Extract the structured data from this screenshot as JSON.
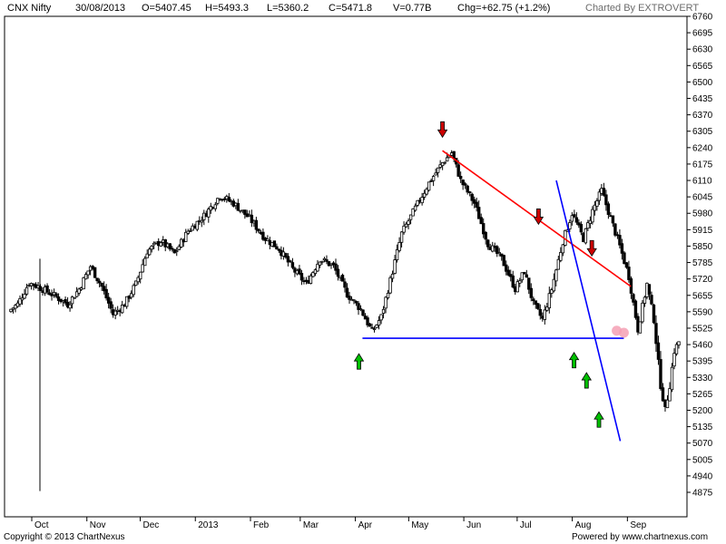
{
  "header": {
    "symbol": "CNX Nifty",
    "date": "30/08/2013",
    "open": "O=5407.45",
    "high": "H=5493.3",
    "low": "L=5360.2",
    "close": "C=5471.8",
    "volume": "V=0.77B",
    "change": "Chg=+62.75 (+1.2%)",
    "charted_by": "Charted By EXTROVERT"
  },
  "footer": {
    "copyright": "Copyright © 2013 ChartNexus",
    "powered_by": "Powered by www.chartnexus.com"
  },
  "colors": {
    "up_candle": "#ffffff",
    "down_candle": "#000000",
    "resistance_line": "#ff0000",
    "support_line": "#0000ff",
    "down_arrow": "#cc0000",
    "up_arrow": "#00c000",
    "marker_circle": "#f4a0b4"
  },
  "chart_data": {
    "type": "candlestick",
    "title": "CNX Nifty",
    "ylim": [
      4810,
      6760
    ],
    "y_ticks": [
      6760,
      6695,
      6630,
      6565,
      6500,
      6435,
      6370,
      6305,
      6240,
      6175,
      6110,
      6045,
      5980,
      5915,
      5850,
      5785,
      5720,
      5655,
      5590,
      5525,
      5460,
      5395,
      5330,
      5265,
      5200,
      5135,
      5070,
      5005,
      4940,
      4875
    ],
    "x_ticks": [
      "Oct",
      "Nov",
      "Dec",
      "2013",
      "Feb",
      "Mar",
      "Apr",
      "May",
      "Jun",
      "Jul",
      "Aug",
      "Sep"
    ],
    "grid": false,
    "price_anchors": [
      [
        0,
        5600
      ],
      [
        3,
        5620
      ],
      [
        8,
        5705
      ],
      [
        12,
        5690
      ],
      [
        18,
        5660
      ],
      [
        25,
        5620
      ],
      [
        30,
        5680
      ],
      [
        35,
        5770
      ],
      [
        40,
        5690
      ],
      [
        45,
        5580
      ],
      [
        50,
        5620
      ],
      [
        55,
        5700
      ],
      [
        60,
        5830
      ],
      [
        66,
        5870
      ],
      [
        72,
        5820
      ],
      [
        78,
        5910
      ],
      [
        85,
        5970
      ],
      [
        92,
        6050
      ],
      [
        98,
        6020
      ],
      [
        105,
        5960
      ],
      [
        112,
        5880
      ],
      [
        118,
        5840
      ],
      [
        124,
        5760
      ],
      [
        130,
        5700
      ],
      [
        136,
        5800
      ],
      [
        142,
        5770
      ],
      [
        148,
        5660
      ],
      [
        154,
        5600
      ],
      [
        159,
        5510
      ],
      [
        163,
        5570
      ],
      [
        168,
        5750
      ],
      [
        172,
        5900
      ],
      [
        178,
        6000
      ],
      [
        184,
        6100
      ],
      [
        190,
        6180
      ],
      [
        194,
        6220
      ],
      [
        198,
        6110
      ],
      [
        204,
        6020
      ],
      [
        210,
        5860
      ],
      [
        216,
        5800
      ],
      [
        222,
        5680
      ],
      [
        226,
        5750
      ],
      [
        230,
        5620
      ],
      [
        234,
        5560
      ],
      [
        238,
        5680
      ],
      [
        243,
        5870
      ],
      [
        247,
        5980
      ],
      [
        252,
        5880
      ],
      [
        256,
        5990
      ],
      [
        260,
        6070
      ],
      [
        264,
        5960
      ],
      [
        268,
        5850
      ],
      [
        272,
        5730
      ],
      [
        276,
        5520
      ],
      [
        280,
        5700
      ],
      [
        283,
        5560
      ],
      [
        286,
        5300
      ],
      [
        288,
        5200
      ],
      [
        290,
        5300
      ],
      [
        292,
        5435
      ],
      [
        294,
        5472
      ]
    ],
    "annotations": {
      "resistance_line": {
        "from": {
          "date": "2013-05-20",
          "price": 6228
        },
        "to": {
          "date": "2013-09-03",
          "price": 5690
        }
      },
      "support_line": {
        "from": {
          "date": "2013-04-05",
          "price": 5485
        },
        "to": {
          "date": "2013-08-30",
          "price": 5485
        }
      },
      "downtrend_line": {
        "from": {
          "date": "2013-07-23",
          "price": 6110
        },
        "to": {
          "date": "2013-08-28",
          "price": 5078
        }
      },
      "down_arrows": [
        {
          "date": "2013-05-20",
          "price": 6310
        },
        {
          "date": "2013-07-13",
          "price": 5965
        },
        {
          "date": "2013-08-12",
          "price": 5840
        }
      ],
      "up_arrows": [
        {
          "date": "2013-04-03",
          "price": 5395
        },
        {
          "date": "2013-08-02",
          "price": 5400
        },
        {
          "date": "2013-08-09",
          "price": 5320
        },
        {
          "date": "2013-08-16",
          "price": 5165
        }
      ],
      "markers": [
        {
          "date": "2013-08-26",
          "price": 5515
        },
        {
          "date": "2013-08-30",
          "price": 5507
        }
      ]
    }
  }
}
